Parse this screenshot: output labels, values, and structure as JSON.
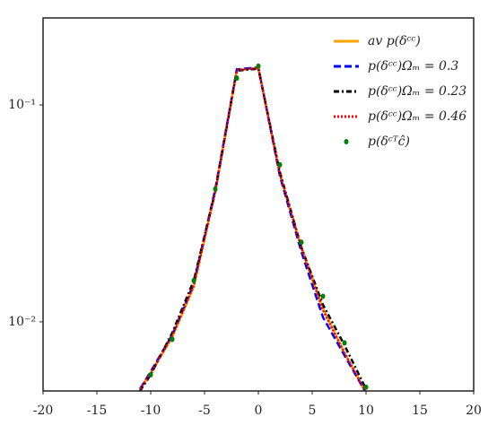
{
  "chart_data": {
    "type": "line",
    "log_y": true,
    "grid": false,
    "legend": "upper right",
    "xlim": [
      -20,
      20
    ],
    "xticks": [
      -20,
      -15,
      -10,
      -5,
      0,
      5,
      10,
      15,
      20
    ],
    "ylim": [
      0.0048,
      0.252
    ],
    "yticks": [
      {
        "value": 0.01,
        "label": "10⁻²"
      },
      {
        "value": 0.1,
        "label": "10⁻¹"
      }
    ],
    "series": [
      {
        "name": "av p(δᶜᶜ)",
        "color": "#ffa500",
        "style": "solid",
        "x": [
          -11,
          -10,
          -8,
          -6,
          -4,
          -2,
          0,
          2,
          4,
          6,
          8,
          10
        ],
        "values": [
          0.0049,
          0.0058,
          0.0085,
          0.0145,
          0.04,
          0.145,
          0.148,
          0.048,
          0.022,
          0.0115,
          0.0072,
          0.0047
        ]
      },
      {
        "name": "p(δᶜᶜ)Ωₘ = 0.3",
        "color": "#0000ff",
        "style": "dashed",
        "x": [
          -11,
          -10,
          -8,
          -6,
          -4,
          -2,
          0,
          2,
          4,
          6,
          8,
          10
        ],
        "values": [
          0.0049,
          0.0059,
          0.0087,
          0.015,
          0.041,
          0.146,
          0.149,
          0.047,
          0.021,
          0.0105,
          0.007,
          0.0047
        ]
      },
      {
        "name": "p(δᶜᶜ)Ωₘ = 0.23",
        "color": "#000000",
        "style": "dashdot",
        "x": [
          -11,
          -10,
          -8,
          -6,
          -4,
          -2,
          0,
          2,
          4,
          6,
          8,
          10
        ],
        "values": [
          0.0048,
          0.0057,
          0.0089,
          0.0155,
          0.04,
          0.144,
          0.147,
          0.049,
          0.022,
          0.012,
          0.0078,
          0.0049
        ]
      },
      {
        "name": "p(δᶜᶜ)Ωₘ = 0.46",
        "color": "#ff0000",
        "style": "dotted",
        "x": [
          -11,
          -10,
          -8,
          -6,
          -4,
          -2,
          0,
          2,
          4,
          6,
          8,
          10
        ],
        "values": [
          0.0049,
          0.0058,
          0.0086,
          0.0147,
          0.04,
          0.145,
          0.148,
          0.048,
          0.022,
          0.0113,
          0.0072,
          0.0047
        ]
      },
      {
        "name": "p(δᶜᵀĉ)",
        "color": "#008000",
        "style": "points",
        "x": [
          -10,
          -8,
          -6,
          -4,
          -2,
          0,
          2,
          4,
          6,
          8,
          10
        ],
        "values": [
          0.0057,
          0.0083,
          0.0155,
          0.041,
          0.133,
          0.151,
          0.053,
          0.0233,
          0.0131,
          0.008,
          0.005
        ]
      }
    ]
  }
}
